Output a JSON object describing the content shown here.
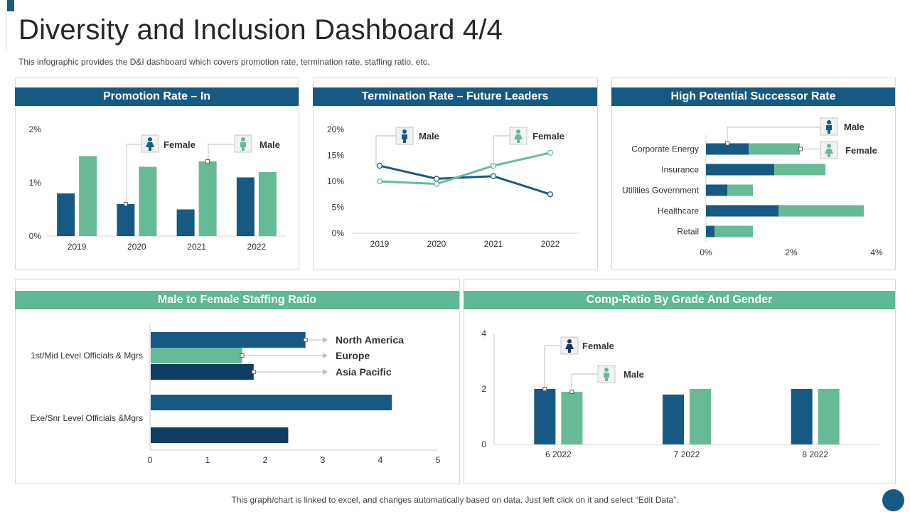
{
  "page": {
    "title": "Diversity and Inclusion Dashboard 4/4",
    "subtitle": "This infographic provides the D&I dashboard which covers promotion rate, termination rate, staffing ratio, etc.",
    "footer": "This graph/chart is linked to excel,  and changes automatically based on data. Just left click on it and select “Edit Data”."
  },
  "colors": {
    "dark": "#165a84",
    "green": "#66bb96",
    "navy": "#0f3e62",
    "axis": "#d0d0d0",
    "icon_bg": "#f2f2f2"
  },
  "icons": {
    "female": "female-person-icon",
    "male": "male-person-icon"
  },
  "panels": {
    "promotion": {
      "header": "Promotion Rate – In"
    },
    "termination": {
      "header": "Termination Rate – Future Leaders"
    },
    "successor": {
      "header": "High Potential Successor Rate"
    },
    "staffing": {
      "header": "Male to Female Staffing Ratio"
    },
    "compratio": {
      "header": "Comp-Ratio By Grade And Gender"
    }
  },
  "chart_data": [
    {
      "id": "promotion",
      "type": "bar",
      "title": "Promotion Rate – In",
      "categories": [
        "2019",
        "2020",
        "2021",
        "2022"
      ],
      "series": [
        {
          "name": "Female",
          "color": "#165a84",
          "values": [
            0.8,
            0.6,
            0.5,
            1.1
          ]
        },
        {
          "name": "Male",
          "color": "#66bb96",
          "values": [
            1.5,
            1.3,
            1.4,
            1.2
          ]
        }
      ],
      "ylim": [
        0,
        2
      ],
      "yticks": [
        0,
        1,
        2
      ],
      "ytick_labels": [
        "0%",
        "1%",
        "2%"
      ],
      "legend": [
        {
          "name": "Female",
          "icon": "female",
          "point": [
            0,
            1
          ]
        },
        {
          "name": "Male",
          "icon": "male",
          "point": [
            1,
            2
          ]
        }
      ]
    },
    {
      "id": "termination",
      "type": "line",
      "title": "Termination Rate – Future Leaders",
      "categories": [
        "2019",
        "2020",
        "2021",
        "2022"
      ],
      "series": [
        {
          "name": "Male",
          "color": "#165a84",
          "values": [
            13,
            10.5,
            11,
            7.5
          ]
        },
        {
          "name": "Female",
          "color": "#66bb96",
          "values": [
            10,
            9.5,
            13,
            15.5
          ]
        }
      ],
      "ylim": [
        0,
        20
      ],
      "yticks": [
        0,
        5,
        10,
        15,
        20
      ],
      "ytick_labels": [
        "0%",
        "5%",
        "10%",
        "15%",
        "20%"
      ],
      "legend": [
        {
          "name": "Male",
          "icon": "male",
          "point": [
            0,
            0
          ]
        },
        {
          "name": "Female",
          "icon": "female",
          "point": [
            1,
            2
          ]
        }
      ]
    },
    {
      "id": "successor",
      "type": "bar",
      "orientation": "horizontal",
      "stacked": true,
      "title": "High Potential Successor Rate",
      "categories": [
        "Corporate Energy",
        "Insurance",
        "Utilities Government",
        "Healthcare",
        "Retail"
      ],
      "series": [
        {
          "name": "Male",
          "color": "#165a84",
          "values": [
            1.0,
            1.6,
            0.5,
            1.7,
            0.2
          ]
        },
        {
          "name": "Female",
          "color": "#66bb96",
          "values": [
            1.2,
            1.2,
            0.6,
            2.0,
            0.9
          ]
        }
      ],
      "xlim": [
        0,
        4
      ],
      "xticks": [
        0,
        2,
        4
      ],
      "xtick_labels": [
        "0%",
        "2%",
        "4%"
      ],
      "legend": [
        {
          "name": "Male",
          "icon": "male"
        },
        {
          "name": "Female",
          "icon": "female"
        }
      ]
    },
    {
      "id": "staffing",
      "type": "bar",
      "orientation": "horizontal",
      "title": "Male to Female Staffing Ratio",
      "categories": [
        "1st/Mid Level Officials & Mgrs",
        "Exe/Snr Level Officials &Mgrs"
      ],
      "series": [
        {
          "name": "North America",
          "color": "#165a84",
          "values": [
            2.7,
            4.2
          ]
        },
        {
          "name": "Europe",
          "color": "#66bb96",
          "values": [
            1.6,
            null
          ]
        },
        {
          "name": "Asia Pacific",
          "color": "#0f3e62",
          "values": [
            1.8,
            2.4
          ]
        }
      ],
      "xlim": [
        0,
        5
      ],
      "xticks": [
        0,
        1,
        2,
        3,
        4,
        5
      ]
    },
    {
      "id": "compratio",
      "type": "bar",
      "title": "Comp-Ratio By Grade And Gender",
      "categories": [
        "6 2022",
        "7 2022",
        "8 2022"
      ],
      "series": [
        {
          "name": "Female",
          "color": "#165a84",
          "values": [
            2,
            1.8,
            2
          ]
        },
        {
          "name": "Male",
          "color": "#66bb96",
          "values": [
            1.9,
            2,
            2
          ]
        }
      ],
      "ylim": [
        0,
        4
      ],
      "yticks": [
        0,
        2,
        4
      ],
      "legend": [
        {
          "name": "Female",
          "icon": "female"
        },
        {
          "name": "Male",
          "icon": "male"
        }
      ]
    }
  ]
}
